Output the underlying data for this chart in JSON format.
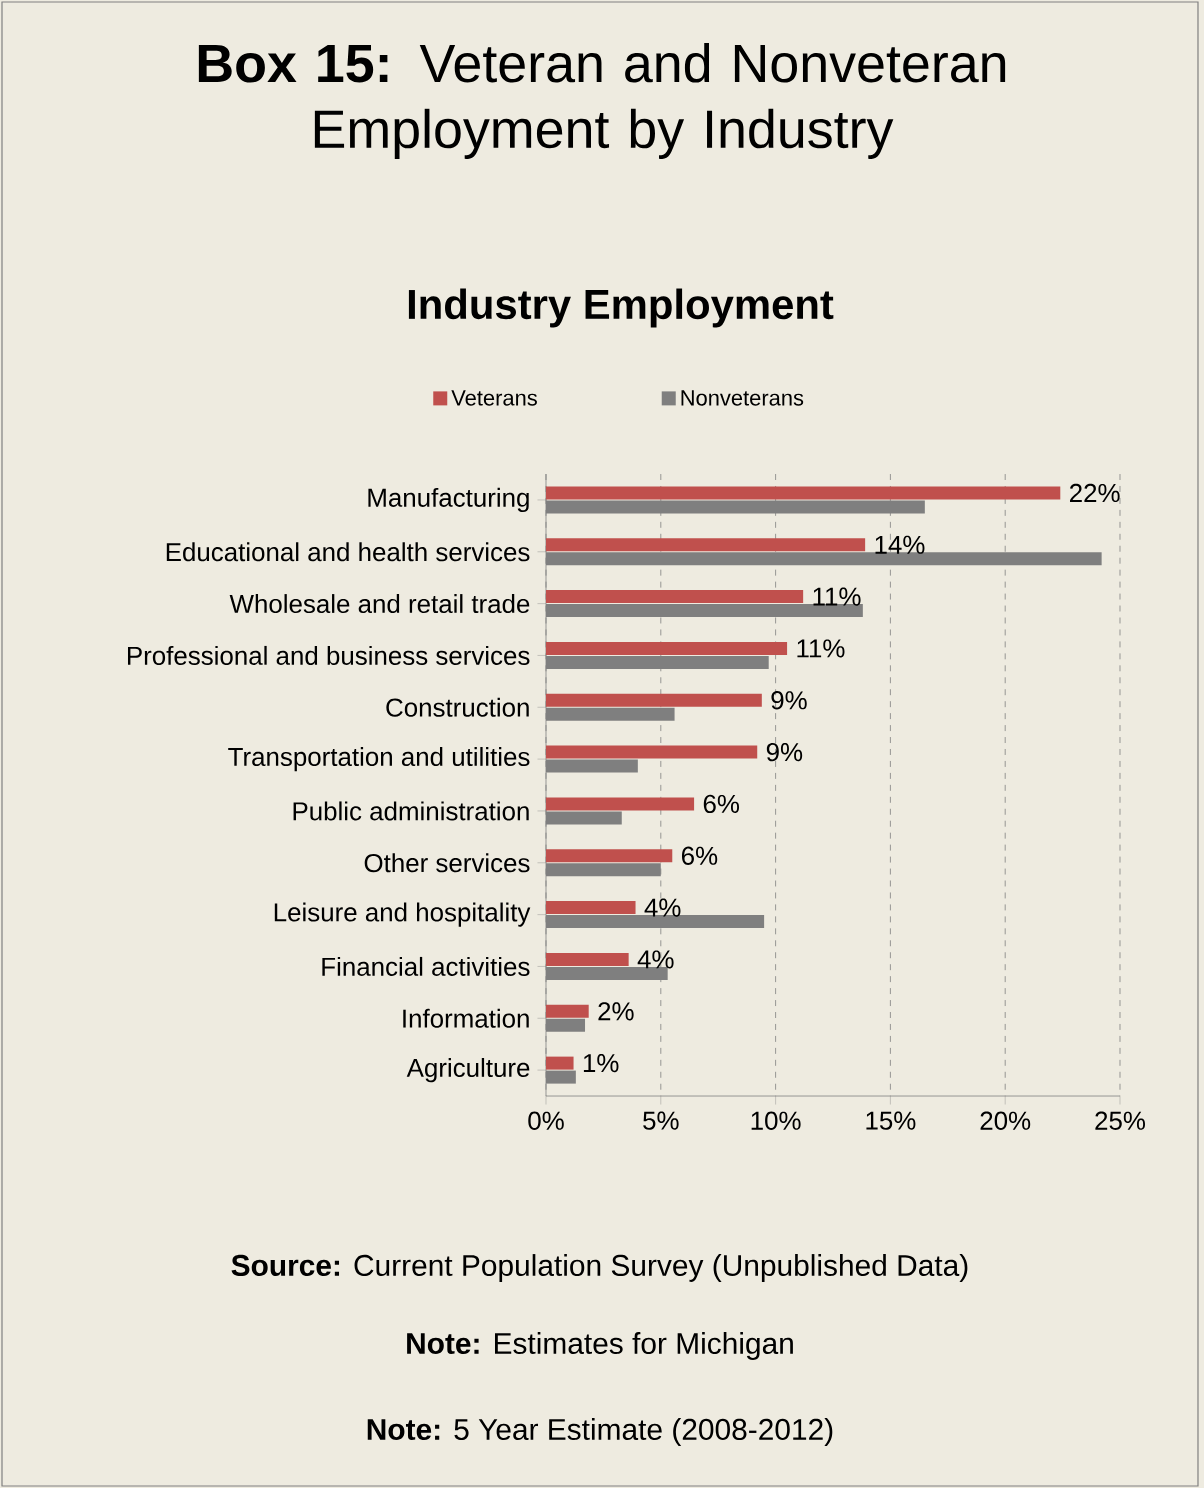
{
  "chart_data": {
    "type": "bar",
    "orientation": "horizontal",
    "title": "**Box 15:** Veteran and Nonveteran Employment by Industry",
    "subtitle": "Industry Employment",
    "categories": [
      "Manufacturing",
      "Educational and health services",
      "Wholesale and retail trade",
      "Professional and business services",
      "Construction",
      "Transportation and utilities",
      "Public administration",
      "Other services",
      "Leisure and hospitality",
      "Financial activities",
      "Information",
      "Agriculture"
    ],
    "series": [
      {
        "name": "Veterans",
        "color": "#c0504d",
        "values": [
          22.4,
          13.9,
          11.2,
          10.5,
          9.4,
          9.2,
          6.45,
          5.5,
          3.9,
          3.6,
          1.86,
          1.2
        ],
        "value_labels": [
          "22%",
          "14%",
          "11%",
          "11%",
          "9%",
          "9%",
          "6%",
          "6%",
          "4%",
          "4%",
          "2%",
          "1%"
        ]
      },
      {
        "name": "Nonveterans",
        "color": "#7f7f7f",
        "values": [
          16.5,
          24.2,
          13.8,
          9.7,
          5.6,
          4.0,
          3.3,
          5.0,
          9.5,
          5.3,
          1.7,
          1.3
        ]
      }
    ],
    "xlim": [
      0,
      25
    ],
    "xticks": [
      {
        "value": 0,
        "label": "0%"
      },
      {
        "value": 5,
        "label": "5%"
      },
      {
        "value": 10,
        "label": "10%"
      },
      {
        "value": 15,
        "label": "15%"
      },
      {
        "value": 20,
        "label": "20%"
      },
      {
        "value": 25,
        "label": "25%"
      }
    ],
    "grid": "x",
    "legend": "top",
    "annotations": [
      "**Source:** Current Population Survey (Unpublished Data)",
      "**Note:** Estimates for Michigan",
      "**Note:** 5 Year Estimate (2008-2012)"
    ]
  }
}
